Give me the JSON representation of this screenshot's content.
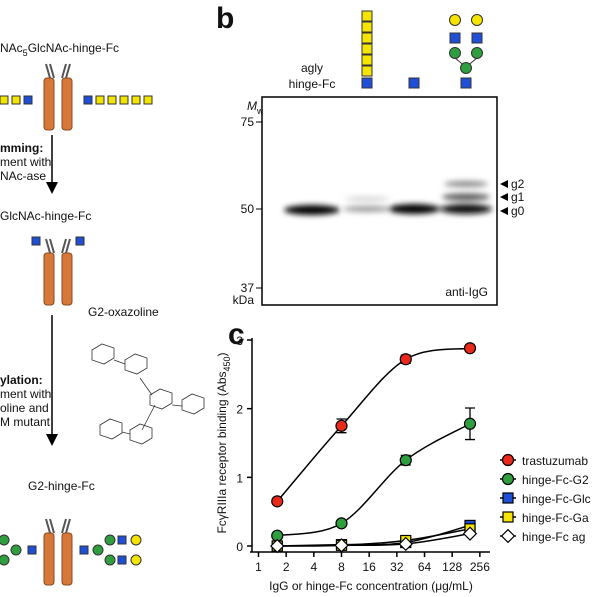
{
  "panel_a": {
    "top_label": "NAc",
    "top_label_sub": "5",
    "top_label_rest": "GlcNAc-hinge-Fc",
    "step1_lines": [
      "mming:",
      "ment with",
      "NAc-ase"
    ],
    "middle_label": "GlcNAc-hinge-Fc",
    "reagent": "G2-oxazoline",
    "step2_lines": [
      "ylation:",
      "ment with",
      "oline and",
      "M mutant"
    ],
    "bottom_label": "G2-hinge-Fc"
  },
  "panel_b": {
    "letter": "b",
    "lane_label": "agly\nhinge-Fc",
    "mw_label": "M",
    "mw_sub": "w",
    "markers": [
      "75",
      "50",
      "37"
    ],
    "unit": "kDa",
    "band_labels": [
      "g2",
      "g1",
      "g0"
    ],
    "antibody": "anti-IgG"
  },
  "chart_data": {
    "type": "line",
    "letter": "c",
    "x_label": "IgG or hinge-Fc concentration (μg/mL)",
    "y_label": "FcγRIIIa receptor binding (Abs",
    "y_label_sub": "450",
    "y_label_end": ")",
    "x": [
      1.6,
      8,
      40,
      200
    ],
    "log_x": true,
    "xlim": [
      0.85,
      330
    ],
    "xticks": [
      1,
      2,
      4,
      8,
      16,
      32,
      64,
      128,
      256
    ],
    "ylim": [
      0,
      3
    ],
    "yticks": [
      0,
      1,
      2,
      3
    ],
    "legend": "right",
    "series": [
      {
        "name": "trastuzumab",
        "color": "#e8291c",
        "values": [
          0.65,
          1.75,
          2.72,
          2.88
        ],
        "errors": [
          0.02,
          0.1,
          0.06,
          0.03
        ]
      },
      {
        "name": "hinge-Fc-G2",
        "color": "#2e9e3f",
        "values": [
          0.15,
          0.33,
          1.25,
          1.78
        ],
        "errors": [
          0.02,
          0.03,
          0.07,
          0.23
        ]
      },
      {
        "name": "hinge-Fc-Glc",
        "color": "#1f4fd6",
        "values": [
          0.0,
          0.02,
          0.05,
          0.3
        ],
        "errors": [
          0.01,
          0.01,
          0.02,
          0.03
        ]
      },
      {
        "name": "hinge-Fc-Ga",
        "color": "#f5e400",
        "values": [
          0.0,
          0.01,
          0.08,
          0.25
        ],
        "errors": [
          0.01,
          0.01,
          0.02,
          0.03
        ]
      },
      {
        "name": "hinge-Fc ag",
        "color": "#ffffff",
        "values": [
          0.0,
          0.01,
          0.03,
          0.18
        ],
        "errors": [
          0.01,
          0.01,
          0.01,
          0.02
        ]
      }
    ]
  }
}
